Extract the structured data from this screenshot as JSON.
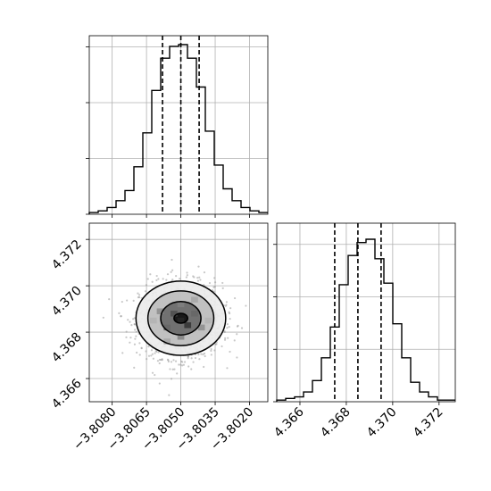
{
  "chart_data": {
    "type": "corner",
    "parameters": [
      {
        "index": 0,
        "range": [
          -3.809,
          -3.8012
        ],
        "ticks": [
          -3.808,
          -3.8065,
          -3.805,
          -3.8035,
          -3.802
        ],
        "tick_labels": [
          "−3.8080",
          "−3.8065",
          "−3.8050",
          "−3.8035",
          "−3.8020"
        ],
        "quantiles": [
          -3.8058,
          -3.805,
          -3.8042
        ]
      },
      {
        "index": 1,
        "range": [
          4.365,
          4.3727
        ],
        "ticks": [
          4.366,
          4.368,
          4.37,
          4.372
        ],
        "tick_labels": [
          "4.366",
          "4.368",
          "4.370",
          "4.372"
        ],
        "quantiles": [
          4.3675,
          4.3685,
          4.3695
        ]
      }
    ],
    "histograms": [
      {
        "param": 0,
        "bin_start": -3.809,
        "bin_width": 0.00039,
        "counts": [
          1,
          2,
          4,
          8,
          14,
          28,
          48,
          73,
          92,
          99,
          100,
          92,
          75,
          49,
          29,
          15,
          8,
          4,
          2,
          1
        ]
      },
      {
        "param": 1,
        "bin_start": 4.365,
        "bin_width": 0.000385,
        "counts": [
          1,
          2,
          3,
          6,
          13,
          27,
          46,
          72,
          90,
          98,
          100,
          88,
          73,
          48,
          27,
          12,
          6,
          3,
          1,
          1
        ]
      }
    ],
    "scatter_2d": {
      "x_param": 0,
      "y_param": 1,
      "mean": [
        -3.805,
        4.3685
      ],
      "std": [
        0.0009,
        0.0008
      ],
      "density_cells": [
        {
          "x": -3.805,
          "y": 4.3685,
          "level": 0.85
        },
        {
          "x": -3.8047,
          "y": 4.3683,
          "level": 0.8
        },
        {
          "x": -3.8053,
          "y": 4.3688,
          "level": 0.7
        },
        {
          "x": -3.8044,
          "y": 4.3688,
          "level": 0.6
        },
        {
          "x": -3.8056,
          "y": 4.3682,
          "level": 0.6
        },
        {
          "x": -3.805,
          "y": 4.3692,
          "level": 0.5
        },
        {
          "x": -3.805,
          "y": 4.3678,
          "level": 0.5
        },
        {
          "x": -3.8059,
          "y": 4.3689,
          "level": 0.45
        },
        {
          "x": -3.8041,
          "y": 4.3682,
          "level": 0.45
        },
        {
          "x": -3.8044,
          "y": 4.3694,
          "level": 0.35
        },
        {
          "x": -3.8056,
          "y": 4.3676,
          "level": 0.35
        },
        {
          "x": -3.8062,
          "y": 4.3685,
          "level": 0.3
        },
        {
          "x": -3.8038,
          "y": 4.3685,
          "level": 0.3
        }
      ],
      "contours": [
        {
          "cx": -3.805,
          "cy": 4.3686,
          "rx": 0.0003,
          "ry": 0.00021,
          "fill": "#101010"
        },
        {
          "cx": -3.805,
          "cy": 4.3686,
          "rx": 0.00088,
          "ry": 0.00072,
          "fill": "#6a6a6a"
        },
        {
          "cx": -3.805,
          "cy": 4.3686,
          "rx": 0.00144,
          "ry": 0.00118,
          "fill": "#bdbdbd"
        },
        {
          "cx": -3.805,
          "cy": 4.3686,
          "rx": 0.00196,
          "ry": 0.0016,
          "fill": "#ececec"
        }
      ]
    },
    "grid": true,
    "colors": {
      "line": "#000000",
      "grid": "#b0b0b0",
      "points": "#9a9a9a"
    }
  }
}
